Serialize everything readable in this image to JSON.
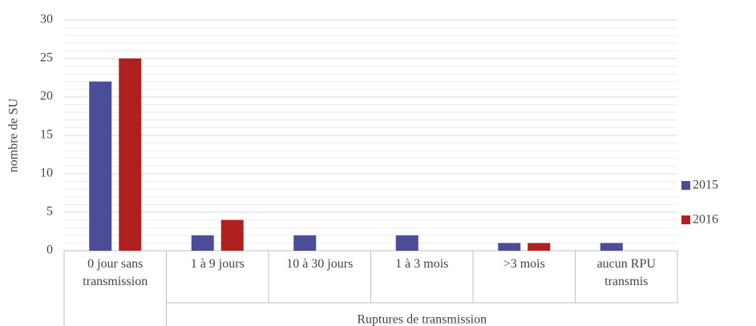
{
  "chart_data": {
    "type": "bar",
    "y_label": "nombre de SU",
    "categories": [
      "0 jour sans transmission",
      "1 à 9 jours",
      "10 à 30 jours",
      "1 à 3 mois",
      ">3 mois",
      "aucun RPU transmis"
    ],
    "category_group": "Ruptures de transmission",
    "series": [
      {
        "name": "2015",
        "color": "#4b4d99",
        "values": [
          22,
          2,
          2,
          2,
          1,
          1
        ]
      },
      {
        "name": "2016",
        "color": "#b0201f",
        "values": [
          25,
          4,
          0,
          0,
          1,
          0
        ]
      }
    ],
    "ylim": [
      0,
      30
    ],
    "yticks": [
      0,
      5,
      10,
      15,
      20,
      25,
      30
    ],
    "grid": true,
    "minor_grid": true,
    "legend": "right"
  }
}
